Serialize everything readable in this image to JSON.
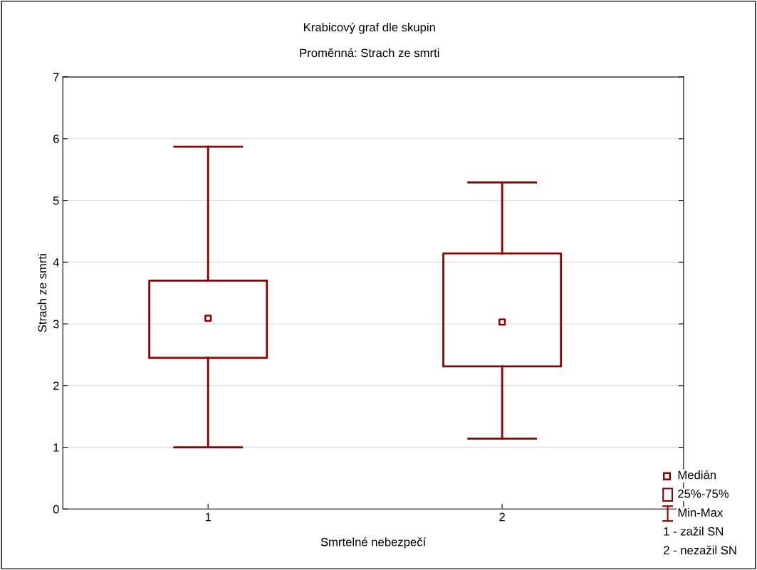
{
  "chart_data": {
    "type": "box",
    "title": "Krabicový graf dle skupin",
    "subtitle": "Proměnná: Strach ze smrti",
    "xlabel": "Smrtelné nebezpečí",
    "ylabel": "Strach ze smrti",
    "categories": [
      "1",
      "2"
    ],
    "color": "#8b0000",
    "boxes": [
      {
        "low": 1.0,
        "q1": 2.45,
        "median": 3.09,
        "q3": 3.7,
        "high": 5.87
      },
      {
        "low": 1.14,
        "q1": 2.31,
        "median": 3.03,
        "q3": 4.14,
        "high": 5.29
      }
    ],
    "ylim": [
      0,
      7
    ],
    "yticks": [
      0,
      1,
      2,
      3,
      4,
      5,
      6,
      7
    ],
    "grid": "y",
    "annotations": [
      "Medián",
      "25%-75%",
      "Min-Max",
      "1 - zažil SN",
      "2 - nezažil SN"
    ]
  }
}
